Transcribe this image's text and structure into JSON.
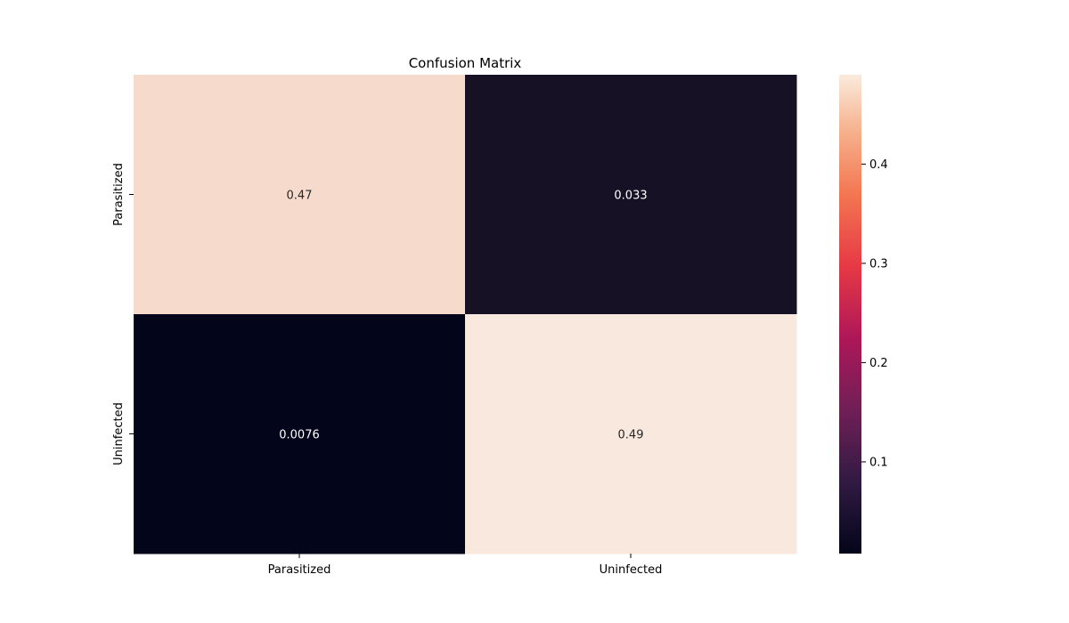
{
  "chart_data": {
    "type": "heatmap",
    "title": "Confusion Matrix",
    "xlabel": "",
    "ylabel": "",
    "row_labels": [
      "Parasitized",
      "Uninfected"
    ],
    "col_labels": [
      "Parasitized",
      "Uninfected"
    ],
    "values": [
      [
        0.47,
        0.033
      ],
      [
        0.0076,
        0.49
      ]
    ],
    "cell_labels": [
      [
        "0.47",
        "0.033"
      ],
      [
        "0.0076",
        "0.49"
      ]
    ],
    "colormap": "rocket",
    "colorbar": {
      "range": [
        0.0076,
        0.49
      ],
      "ticks": [
        0.1,
        0.2,
        0.3,
        0.4
      ],
      "tick_labels": [
        "0.1",
        "0.2",
        "0.3",
        "0.4"
      ]
    },
    "colors": {
      "0.47": "#f6dacb",
      "0.033": "#171126",
      "0.0076": "#03051a",
      "0.49": "#f9e8dd",
      "light_text": "#262626",
      "dark_text": "#ffffff"
    }
  }
}
